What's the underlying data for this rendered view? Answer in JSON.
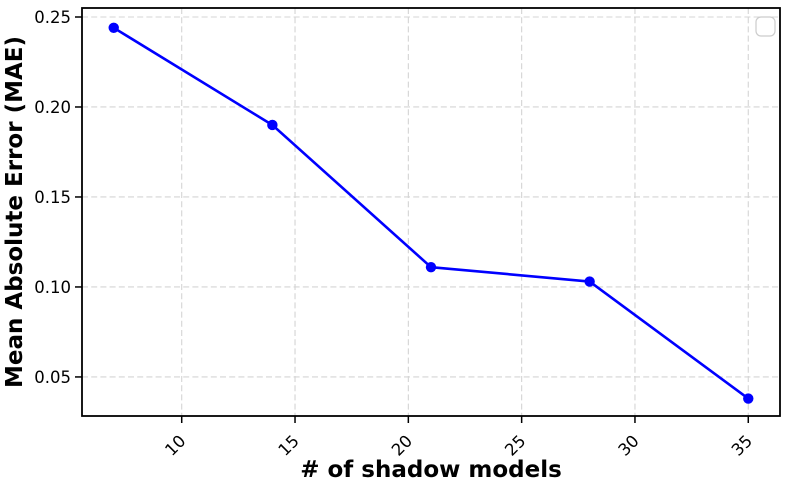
{
  "chart_data": {
    "type": "line",
    "title": "",
    "xlabel": "# of shadow models",
    "ylabel": "Mean Absolute Error (MAE)",
    "x": [
      7,
      14,
      21,
      28,
      35
    ],
    "y": [
      0.244,
      0.19,
      0.111,
      0.103,
      0.038
    ],
    "xticks": [
      10,
      15,
      20,
      25,
      30,
      35
    ],
    "yticks": [
      0.05,
      0.1,
      0.15,
      0.2,
      0.25
    ],
    "xlim": [
      5.6,
      36.4
    ],
    "ylim": [
      0.0283,
      0.255
    ],
    "grid": true,
    "grid_style": "dashed",
    "x_tick_rotation": 45,
    "marker": "circle",
    "legend": {
      "visible": true,
      "entries": [],
      "location": "upper right"
    },
    "colors": {
      "line": "#0000ff",
      "marker": "#0000ff",
      "grid": "#d4d4d4",
      "spine": "#000000",
      "text": "#000000",
      "legend_border": "#cccccc",
      "legend_fill": "#ffffff",
      "background": "#ffffff"
    }
  }
}
